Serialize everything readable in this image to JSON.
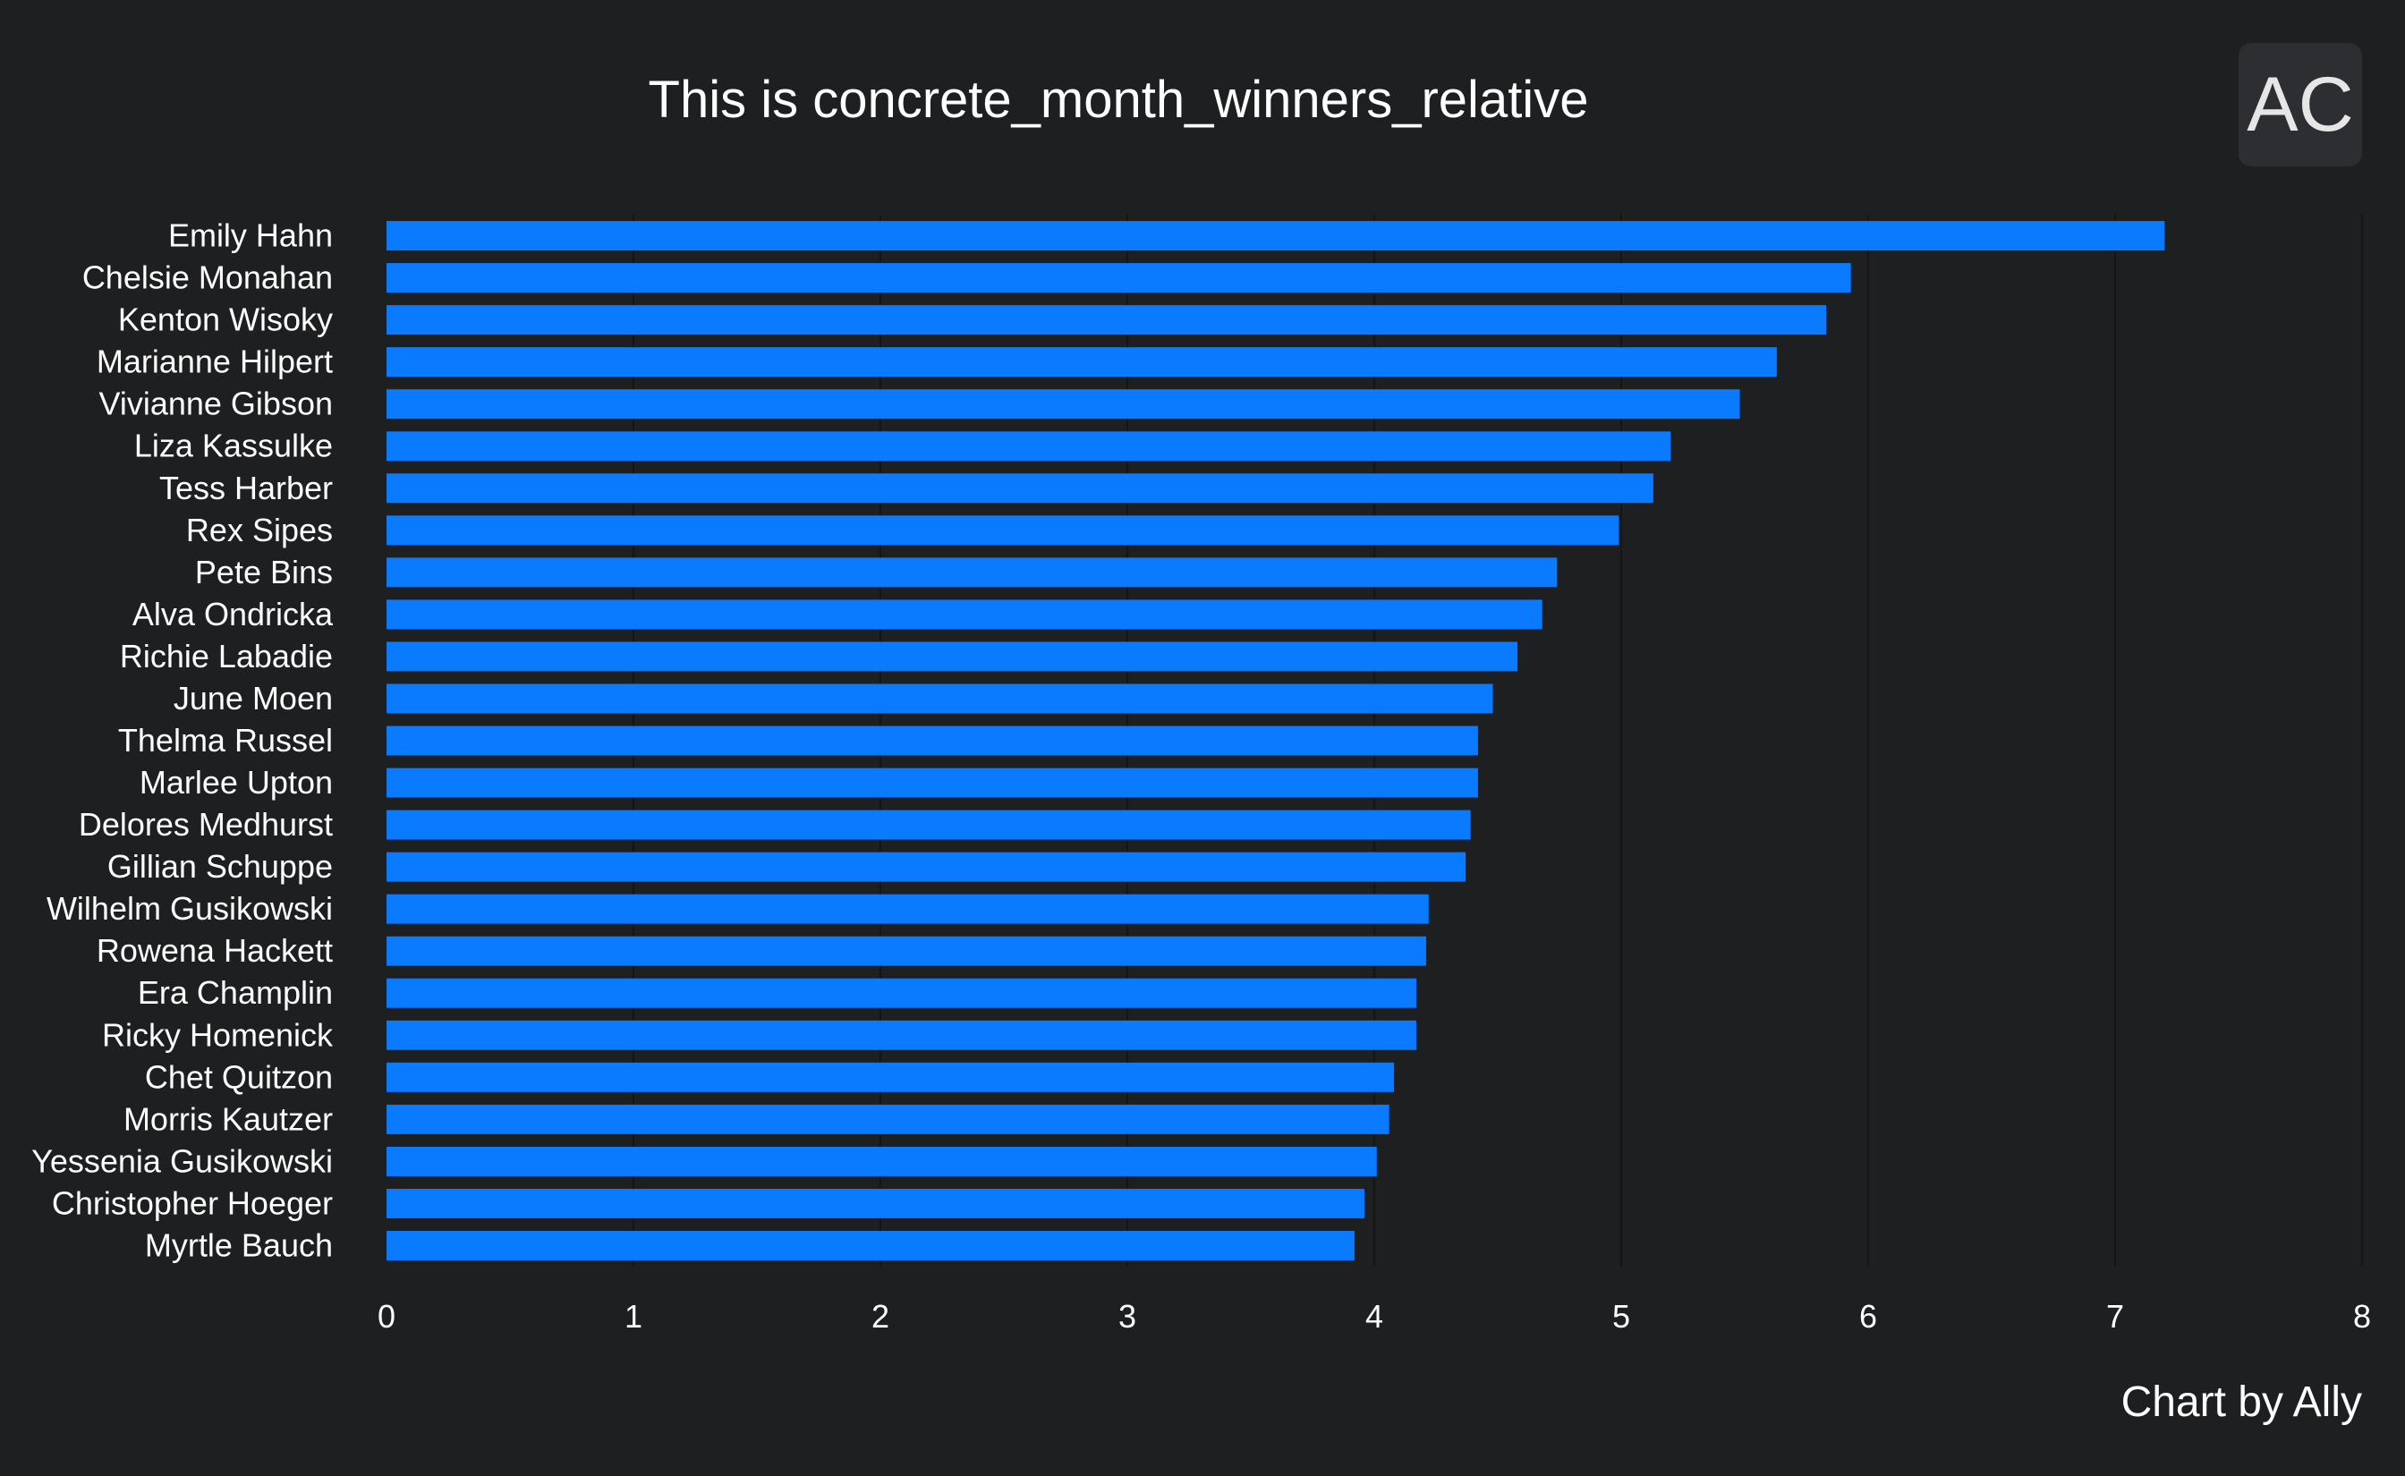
{
  "title": "This is concrete_month_winners_relative",
  "avatar_text": "AC",
  "credit": "Chart by Ally",
  "colors": {
    "background": "#1e1f21",
    "bar": "#0a7aff",
    "grid": "#141517",
    "text": "#ffffff"
  },
  "chart_data": {
    "type": "bar",
    "orientation": "horizontal",
    "categories": [
      "Emily Hahn",
      "Chelsie Monahan",
      "Kenton Wisoky",
      "Marianne Hilpert",
      "Vivianne Gibson",
      "Liza Kassulke",
      "Tess Harber",
      "Rex Sipes",
      "Pete Bins",
      "Alva Ondricka",
      "Richie Labadie",
      "June Moen",
      "Thelma Russel",
      "Marlee Upton",
      "Delores Medhurst",
      "Gillian Schuppe",
      "Wilhelm Gusikowski",
      "Rowena Hackett",
      "Era Champlin",
      "Ricky Homenick",
      "Chet Quitzon",
      "Morris Kautzer",
      "Yessenia Gusikowski",
      "Christopher Hoeger",
      "Myrtle Bauch"
    ],
    "values": [
      7.2,
      5.93,
      5.83,
      5.63,
      5.48,
      5.2,
      5.13,
      4.99,
      4.74,
      4.68,
      4.58,
      4.48,
      4.42,
      4.42,
      4.39,
      4.37,
      4.22,
      4.21,
      4.17,
      4.17,
      4.08,
      4.06,
      4.01,
      3.96,
      3.92
    ],
    "xlim": [
      0,
      8
    ],
    "xticks": [
      "0",
      "1",
      "2",
      "3",
      "4",
      "5",
      "6",
      "7",
      "8"
    ],
    "grid": "vertical",
    "legend": "none"
  }
}
